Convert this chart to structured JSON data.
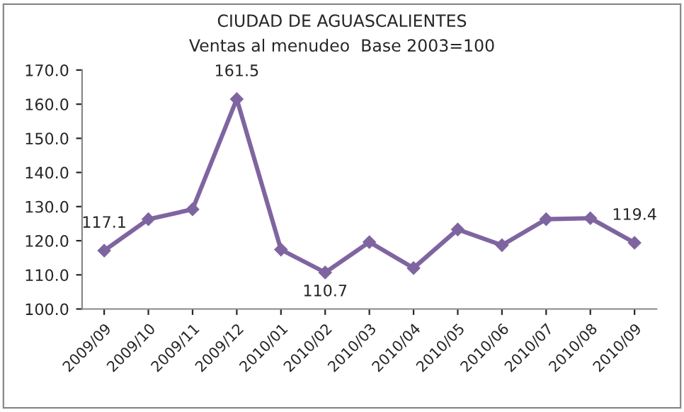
{
  "chart_data": {
    "type": "line",
    "title": "CIUDAD DE AGUASCALIENTES",
    "subtitle": "Ventas al menudeo  Base 2003=100",
    "categories": [
      "2009/09",
      "2009/10",
      "2009/11",
      "2009/12",
      "2010/01",
      "2010/02",
      "2010/03",
      "2010/04",
      "2010/05",
      "2010/06",
      "2010/07",
      "2010/08",
      "2010/09"
    ],
    "series": [
      {
        "color": "#7f65a0",
        "values": [
          117.1,
          126.3,
          129.2,
          161.5,
          117.4,
          110.7,
          119.6,
          112.0,
          123.3,
          118.7,
          126.3,
          126.6,
          119.4
        ],
        "value_labels": [
          "117.1",
          null,
          null,
          "161.5",
          null,
          "110.7",
          null,
          null,
          null,
          null,
          null,
          null,
          "119.4"
        ]
      }
    ],
    "ylim": [
      100,
      170
    ],
    "yticks": [
      {
        "value": 100,
        "label": "100.0"
      },
      {
        "value": 110,
        "label": "110.0"
      },
      {
        "value": 120,
        "label": "120.0"
      },
      {
        "value": 130,
        "label": "130.0"
      },
      {
        "value": 140,
        "label": "140.0"
      },
      {
        "value": 150,
        "label": "150.0"
      },
      {
        "value": 160,
        "label": "160.0"
      },
      {
        "value": 170,
        "label": "170.0"
      }
    ],
    "grid": false,
    "legend": false,
    "marker": "diamond",
    "line_style": "solid"
  }
}
